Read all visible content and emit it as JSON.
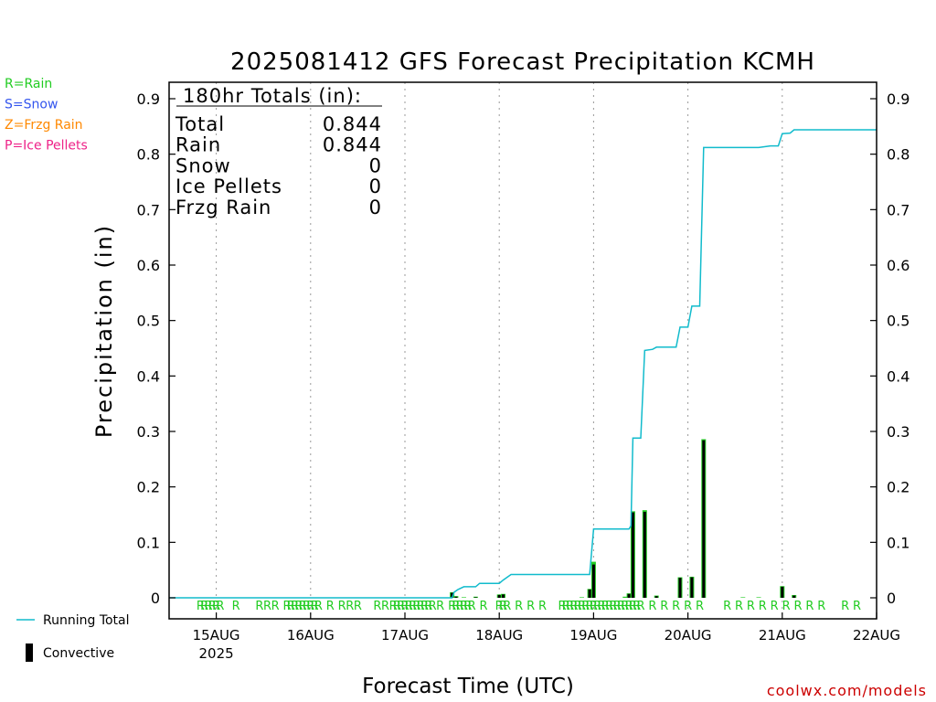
{
  "chart_data": {
    "type": "bar",
    "title": "2025081412 GFS Forecast Precipitation KCMH",
    "xlabel": "Forecast Time (UTC)",
    "ylabel": "Precipitation (in)",
    "ylim": [
      0,
      0.9
    ],
    "yticks": [
      "0",
      "0.1",
      "0.2",
      "0.3",
      "0.4",
      "0.5",
      "0.6",
      "0.7",
      "0.8",
      "0.9"
    ],
    "x_unit": "hours from 2025-08-14 12 UTC",
    "xlim": [
      0,
      180
    ],
    "x_ticks": [
      {
        "h": 12,
        "label": "15AUG",
        "sub": "2025"
      },
      {
        "h": 36,
        "label": "16AUG",
        "sub": ""
      },
      {
        "h": 60,
        "label": "17AUG",
        "sub": ""
      },
      {
        "h": 84,
        "label": "18AUG",
        "sub": ""
      },
      {
        "h": 108,
        "label": "19AUG",
        "sub": ""
      },
      {
        "h": 132,
        "label": "20AUG",
        "sub": ""
      },
      {
        "h": 156,
        "label": "21AUG",
        "sub": ""
      },
      {
        "h": 180,
        "label": "22AUG",
        "sub": ""
      }
    ],
    "grid": "dotted vertical at each day",
    "legend": [
      {
        "label": "R=Rain",
        "color": "#22cc22"
      },
      {
        "label": "S=Snow",
        "color": "#3355ee"
      },
      {
        "label": "Z=Frzg Rain",
        "color": "#ff8800"
      },
      {
        "label": "P=Ice Pellets",
        "color": "#ee2288"
      }
    ],
    "bottom_legend": [
      {
        "label": "Running Total",
        "color": "#11bbcc",
        "kind": "line"
      },
      {
        "label": "Convective",
        "color": "#000000",
        "kind": "bar"
      }
    ],
    "totals": {
      "header": "180hr Totals (in):",
      "rows": [
        {
          "name": "Total",
          "value": "0.844"
        },
        {
          "name": "Rain",
          "value": "0.844"
        },
        {
          "name": "Snow",
          "value": "0"
        },
        {
          "name": "Ice Pellets",
          "value": "0"
        },
        {
          "name": "Frzg Rain",
          "value": "0"
        }
      ]
    },
    "series": [
      {
        "name": "Running Total",
        "color": "#11bbcc",
        "points": [
          [
            0,
            0
          ],
          [
            72,
            0
          ],
          [
            72.5,
            0.01
          ],
          [
            73.5,
            0.015
          ],
          [
            75,
            0.02
          ],
          [
            78,
            0.02
          ],
          [
            79,
            0.026
          ],
          [
            84,
            0.026
          ],
          [
            85,
            0.032
          ],
          [
            87,
            0.042
          ],
          [
            96,
            0.042
          ],
          [
            102,
            0.042
          ],
          [
            107,
            0.042
          ],
          [
            108,
            0.124
          ],
          [
            117,
            0.124
          ],
          [
            117.5,
            0.13
          ],
          [
            118,
            0.288
          ],
          [
            120,
            0.288
          ],
          [
            121,
            0.446
          ],
          [
            123,
            0.448
          ],
          [
            124,
            0.452
          ],
          [
            129,
            0.452
          ],
          [
            130,
            0.488
          ],
          [
            132,
            0.488
          ],
          [
            133,
            0.526
          ],
          [
            135,
            0.526
          ],
          [
            136,
            0.812
          ],
          [
            142,
            0.812
          ],
          [
            150,
            0.812
          ],
          [
            153,
            0.815
          ],
          [
            155,
            0.815
          ],
          [
            156,
            0.837
          ],
          [
            158,
            0.838
          ],
          [
            159,
            0.844
          ],
          [
            180,
            0.844
          ]
        ]
      },
      {
        "name": "Precipitation",
        "color": "#22cc22",
        "bars": [
          [
            72,
            0.01
          ],
          [
            73,
            0.003
          ],
          [
            75,
            0.001
          ],
          [
            78,
            0.002
          ],
          [
            84,
            0.006
          ],
          [
            85,
            0.007
          ],
          [
            105,
            0.001
          ],
          [
            107,
            0.016
          ],
          [
            108,
            0.065
          ],
          [
            116,
            0.002
          ],
          [
            117,
            0.008
          ],
          [
            118,
            0.156
          ],
          [
            121,
            0.158
          ],
          [
            124,
            0.004
          ],
          [
            130,
            0.037
          ],
          [
            133,
            0.038
          ],
          [
            136,
            0.286
          ],
          [
            146,
            0.001
          ],
          [
            150,
            0.001
          ],
          [
            156,
            0.021
          ],
          [
            159,
            0.005
          ]
        ]
      },
      {
        "name": "Convective",
        "color": "#000000",
        "bars": [
          [
            72,
            0.009
          ],
          [
            73,
            0.002
          ],
          [
            78,
            0.001
          ],
          [
            84,
            0.005
          ],
          [
            85,
            0.006
          ],
          [
            107,
            0.015
          ],
          [
            108,
            0.06
          ],
          [
            117,
            0.007
          ],
          [
            118,
            0.154
          ],
          [
            121,
            0.155
          ],
          [
            124,
            0.003
          ],
          [
            130,
            0.036
          ],
          [
            133,
            0.037
          ],
          [
            136,
            0.284
          ],
          [
            156,
            0.02
          ],
          [
            159,
            0.004
          ]
        ]
      }
    ],
    "ptype_marks": {
      "label": "R",
      "color": "#22cc22",
      "hours": [
        8,
        9,
        10,
        11,
        12,
        13,
        17,
        23,
        25,
        27,
        30,
        31,
        32,
        33,
        34,
        35,
        36,
        37,
        38,
        41,
        44,
        46,
        48,
        53,
        55,
        57,
        58,
        59,
        60,
        61,
        62,
        63,
        64,
        65,
        66,
        67,
        69,
        72,
        73,
        74,
        75,
        76,
        77,
        80,
        84,
        85,
        86,
        89,
        92,
        95,
        100,
        101,
        102,
        103,
        104,
        105,
        106,
        107,
        108,
        109,
        110,
        111,
        112,
        113,
        114,
        115,
        116,
        117,
        118,
        119,
        120,
        123,
        126,
        129,
        132,
        135,
        142,
        145,
        148,
        151,
        154,
        157,
        160,
        163,
        166,
        172,
        175
      ]
    }
  },
  "credit": "coolwx.com/models"
}
